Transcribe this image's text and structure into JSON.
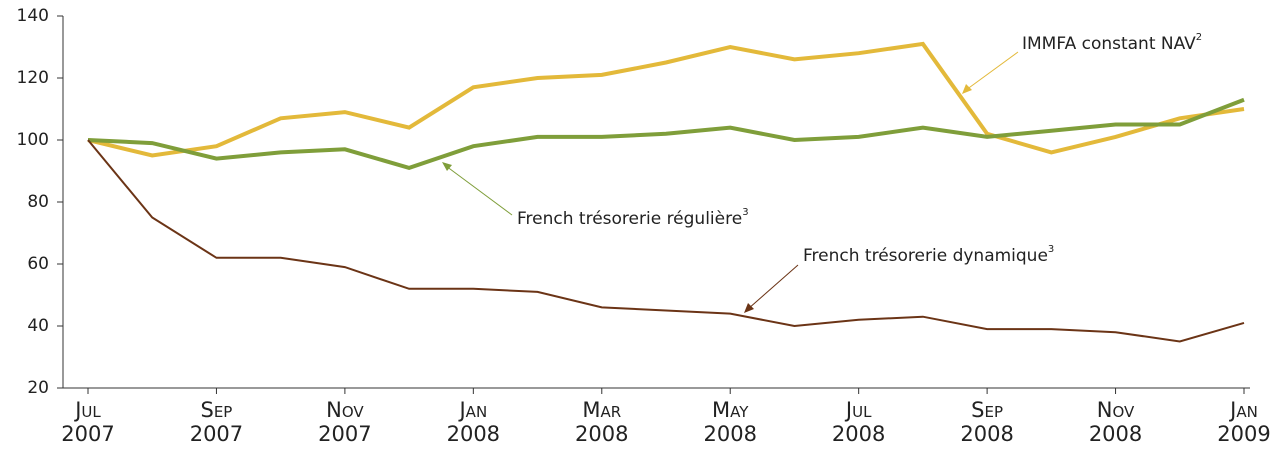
{
  "chart_data": {
    "type": "line",
    "categories": [
      "Jul\n2007",
      null,
      "Sep\n2007",
      null,
      "Nov\n2007",
      null,
      "Jan\n2008",
      null,
      "Mar\n2008",
      null,
      "May\n2008",
      null,
      "Jul\n2008",
      null,
      "Sep\n2008",
      null,
      "Nov\n2008",
      null,
      "Jan\n2009"
    ],
    "series": [
      {
        "name": "IMMFA constant NAV",
        "footnote": "2",
        "color": "#e3b93a",
        "values": [
          100,
          95,
          98,
          107,
          109,
          104,
          117,
          120,
          121,
          125,
          130,
          126,
          128,
          131,
          102,
          96,
          101,
          107,
          110
        ]
      },
      {
        "name": "French trésorerie régulière",
        "footnote": "3",
        "color": "#7f9e3a",
        "values": [
          100,
          99,
          94,
          96,
          97,
          91,
          98,
          101,
          101,
          102,
          104,
          100,
          101,
          104,
          101,
          103,
          105,
          105,
          113
        ]
      },
      {
        "name": "French trésorerie dynamique",
        "footnote": "3",
        "color": "#6b3416",
        "values": [
          100,
          75,
          62,
          62,
          59,
          52,
          52,
          51,
          46,
          45,
          44,
          40,
          42,
          43,
          39,
          39,
          38,
          35,
          41
        ]
      }
    ],
    "ylim": [
      20,
      140
    ],
    "yticks": [
      20,
      40,
      60,
      80,
      100,
      120,
      140
    ]
  }
}
